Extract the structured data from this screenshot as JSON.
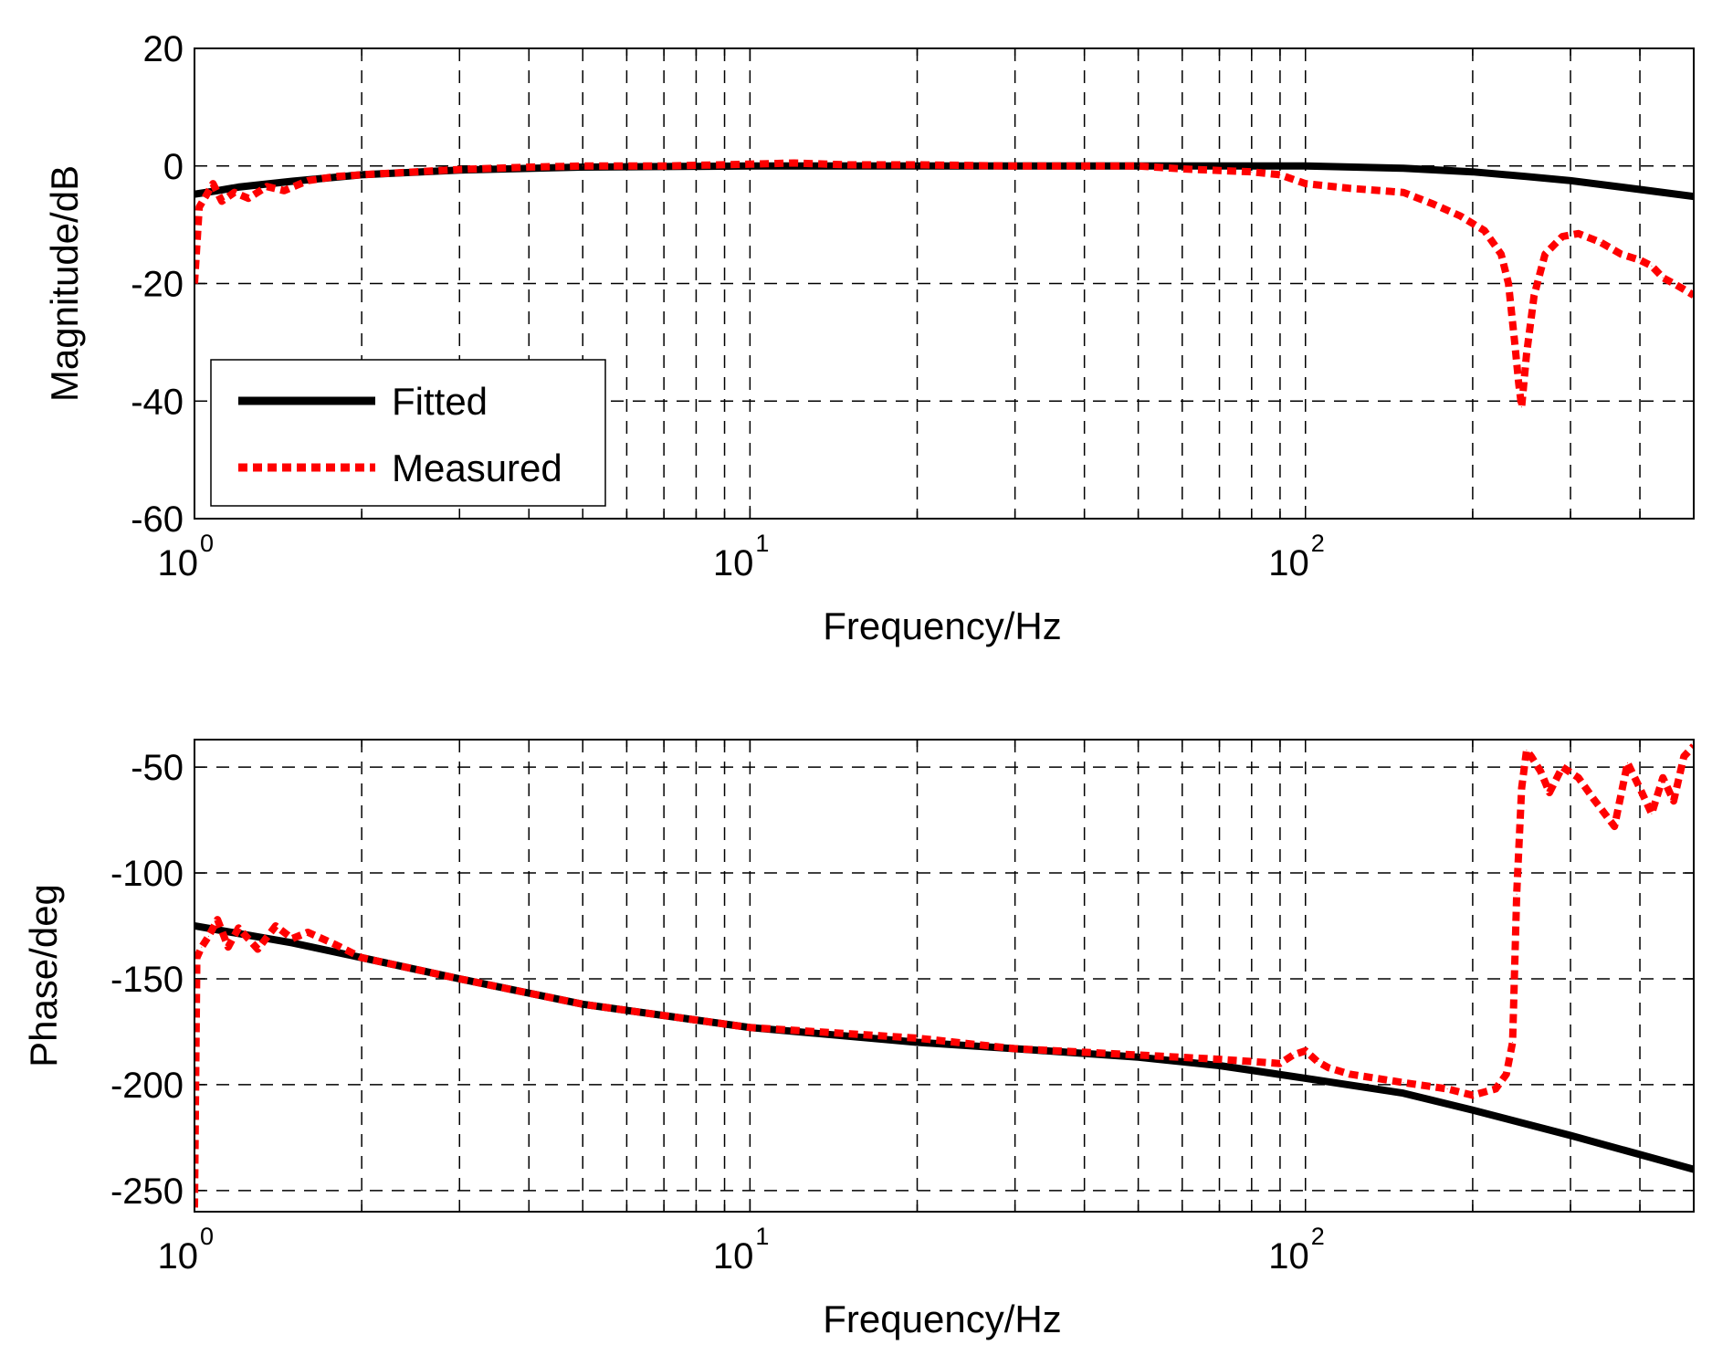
{
  "chart_data": [
    {
      "type": "line",
      "xscale": "log",
      "xlim": [
        1,
        500
      ],
      "ylim": [
        -60,
        20
      ],
      "yticks": [
        20,
        0,
        -20,
        -40,
        -60
      ],
      "ytick_labels": [
        "20",
        "0",
        "-20",
        "-40",
        "-60"
      ],
      "xtick_base_labels": [
        "10",
        "10",
        "10"
      ],
      "xtick_exponent_labels": [
        "0",
        "1",
        "2"
      ],
      "xlabel": "Frequency/Hz",
      "ylabel": "Magnitude/dB",
      "grid": true,
      "legend": {
        "placement": "lower-left",
        "entries": [
          "Fitted",
          "Measured"
        ]
      },
      "series": [
        {
          "name": "Fitted",
          "color": "#000000",
          "style": "solid",
          "x": [
            1,
            1.1,
            1.2,
            1.5,
            2,
            3,
            5,
            10,
            20,
            50,
            100,
            150,
            200,
            250,
            300,
            400,
            500
          ],
          "values": [
            -4.8,
            -4.2,
            -3.6,
            -2.6,
            -1.5,
            -0.7,
            -0.2,
            0,
            0,
            0,
            0,
            -0.4,
            -1.0,
            -1.8,
            -2.5,
            -4.0,
            -5.2
          ]
        },
        {
          "name": "Measured",
          "color": "#ff0000",
          "style": "dotted",
          "x": [
            1,
            1.02,
            1.05,
            1.08,
            1.12,
            1.18,
            1.25,
            1.35,
            1.45,
            1.6,
            1.8,
            2,
            2.5,
            3,
            4,
            5,
            7,
            10,
            12,
            15,
            20,
            30,
            50,
            60,
            80,
            90,
            100,
            120,
            150,
            170,
            190,
            210,
            225,
            232,
            238,
            242,
            245,
            250,
            258,
            270,
            290,
            310,
            340,
            370,
            400,
            420,
            440,
            460,
            480,
            500
          ],
          "values": [
            -20,
            -7,
            -5,
            -3,
            -6,
            -4.5,
            -5.5,
            -3.5,
            -4.2,
            -2.5,
            -1.8,
            -1.5,
            -1.0,
            -0.6,
            -0.2,
            0,
            0,
            0.3,
            0.5,
            0.2,
            0.2,
            0,
            0,
            -0.5,
            -1,
            -1.5,
            -3,
            -3.8,
            -4.5,
            -6.5,
            -8.5,
            -11,
            -15,
            -20,
            -30,
            -37,
            -41,
            -32,
            -22,
            -15,
            -12,
            -11.5,
            -13,
            -15,
            -16,
            -17,
            -19,
            -20,
            -21,
            -22
          ]
        }
      ]
    },
    {
      "type": "line",
      "xscale": "log",
      "xlim": [
        1,
        500
      ],
      "ylim": [
        -260,
        -37
      ],
      "yticks": [
        -50,
        -100,
        -150,
        -200,
        -250
      ],
      "ytick_labels": [
        "-50",
        "-100",
        "-150",
        "-200",
        "-250"
      ],
      "xtick_base_labels": [
        "10",
        "10",
        "10"
      ],
      "xtick_exponent_labels": [
        "0",
        "1",
        "2"
      ],
      "xlabel": "Frequency/Hz",
      "ylabel": "Phase/deg",
      "grid": true,
      "series": [
        {
          "name": "Fitted",
          "color": "#000000",
          "style": "solid",
          "x": [
            1,
            1.5,
            2,
            3,
            5,
            10,
            20,
            30,
            50,
            70,
            100,
            150,
            200,
            300,
            500
          ],
          "values": [
            -125,
            -133,
            -140,
            -150,
            -162,
            -173,
            -180,
            -183,
            -187,
            -191,
            -197,
            -204,
            -212,
            -224,
            -240
          ]
        },
        {
          "name": "Measured",
          "color": "#ff0000",
          "style": "dotted",
          "x": [
            1,
            1.01,
            1.03,
            1.06,
            1.1,
            1.15,
            1.2,
            1.3,
            1.4,
            1.5,
            1.6,
            1.8,
            2,
            3,
            5,
            10,
            20,
            30,
            50,
            70,
            90,
            95,
            100,
            105,
            110,
            120,
            150,
            180,
            200,
            220,
            230,
            236,
            240,
            245,
            250,
            255,
            265,
            275,
            290,
            310,
            330,
            360,
            380,
            400,
            420,
            440,
            460,
            480,
            500
          ],
          "values": [
            -258,
            -140,
            -135,
            -130,
            -122,
            -135,
            -126,
            -136,
            -125,
            -131,
            -128,
            -134,
            -140,
            -150,
            -162,
            -173,
            -178,
            -183,
            -186,
            -188,
            -190,
            -186,
            -184,
            -189,
            -192,
            -195,
            -199,
            -202,
            -205,
            -202,
            -195,
            -180,
            -110,
            -60,
            -42,
            -45,
            -52,
            -62,
            -50,
            -55,
            -65,
            -78,
            -48,
            -60,
            -72,
            -55,
            -66,
            -45,
            -40
          ]
        }
      ]
    }
  ]
}
